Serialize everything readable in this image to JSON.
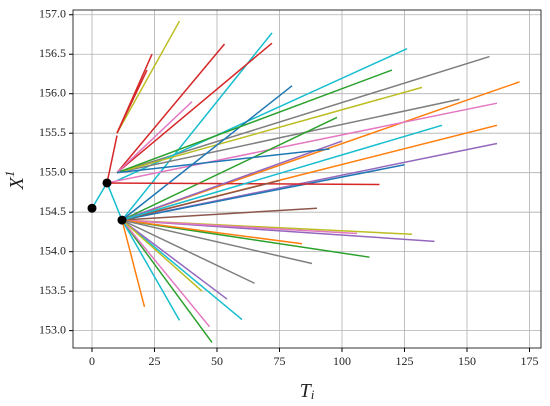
{
  "chart_data": {
    "type": "line",
    "xlabel": [
      "T",
      "i"
    ],
    "ylabel": [
      "X",
      "1"
    ],
    "xlim": [
      -7.6,
      179.6
    ],
    "ylim": [
      152.78,
      157.06
    ],
    "xticks": [
      0,
      25,
      50,
      75,
      100,
      125,
      150,
      175
    ],
    "yticks": [
      {
        "value": 153,
        "label": "153.0"
      },
      {
        "value": 153.5,
        "label": "153.5"
      },
      {
        "value": 154,
        "label": "154.0"
      },
      {
        "value": 154.5,
        "label": "154.5"
      },
      {
        "value": 155,
        "label": "155.0"
      },
      {
        "value": 155.5,
        "label": "155.5"
      },
      {
        "value": 156,
        "label": "156.0"
      },
      {
        "value": 156.5,
        "label": "156.5"
      },
      {
        "value": 157,
        "label": "157.0"
      }
    ],
    "grid": true,
    "series": [
      {
        "color": "#ff7f0e",
        "x": [
          12,
          171
        ],
        "values": [
          154.4,
          156.15
        ]
      },
      {
        "color": "#7f7f7f",
        "x": [
          10,
          159
        ],
        "values": [
          155.0,
          156.47
        ]
      },
      {
        "color": "#9467bd",
        "x": [
          12,
          162
        ],
        "values": [
          154.4,
          155.37
        ]
      },
      {
        "color": "#9467bd",
        "x": [
          12,
          137
        ],
        "values": [
          154.4,
          154.13
        ]
      },
      {
        "color": "#17becf",
        "x": [
          10,
          126
        ],
        "values": [
          154.9,
          156.57
        ]
      },
      {
        "color": "#2ca02c",
        "x": [
          12,
          111
        ],
        "values": [
          154.4,
          153.93
        ]
      },
      {
        "color": "#bcbd22",
        "x": [
          12,
          128
        ],
        "values": [
          154.4,
          154.22
        ]
      },
      {
        "color": "#bcbd22",
        "x": [
          10,
          35
        ],
        "values": [
          155.5,
          156.92
        ]
      },
      {
        "color": "#d62728",
        "x": [
          10,
          53
        ],
        "values": [
          155.0,
          156.63
        ]
      },
      {
        "color": "#17becf",
        "x": [
          12,
          72
        ],
        "values": [
          154.4,
          156.77
        ]
      },
      {
        "color": "#17becf",
        "x": [
          12,
          60
        ],
        "values": [
          154.4,
          153.14
        ]
      },
      {
        "color": "#2ca02c",
        "x": [
          12,
          48
        ],
        "values": [
          154.4,
          152.85
        ]
      },
      {
        "color": "#e377c2",
        "x": [
          12,
          47
        ],
        "values": [
          154.4,
          153.05
        ]
      },
      {
        "color": "#17becf",
        "x": [
          12,
          35
        ],
        "values": [
          154.4,
          153.13
        ]
      },
      {
        "color": "#ff7f0e",
        "x": [
          12,
          21
        ],
        "values": [
          154.4,
          153.3
        ]
      },
      {
        "color": "#e377c2",
        "x": [
          6,
          162
        ],
        "values": [
          154.87,
          155.88
        ]
      },
      {
        "color": "#7f7f7f",
        "x": [
          10,
          147
        ],
        "values": [
          155.0,
          155.93
        ]
      },
      {
        "color": "#ff7f0e",
        "x": [
          12,
          162
        ],
        "values": [
          154.4,
          155.6
        ]
      },
      {
        "color": "#e377c2",
        "x": [
          12,
          106
        ],
        "values": [
          154.4,
          154.23
        ]
      },
      {
        "color": "#1f77b4",
        "x": [
          12,
          125
        ],
        "values": [
          154.4,
          155.1
        ]
      },
      {
        "color": "#bcbd22",
        "x": [
          10,
          132
        ],
        "values": [
          155.0,
          156.08
        ]
      },
      {
        "color": "#8c564b",
        "x": [
          12,
          90
        ],
        "values": [
          154.4,
          154.55
        ]
      },
      {
        "color": "#d62728",
        "x": [
          10,
          72
        ],
        "values": [
          155.0,
          156.64
        ]
      },
      {
        "color": "#2ca02c",
        "x": [
          12,
          98
        ],
        "values": [
          154.4,
          155.7
        ]
      },
      {
        "color": "#d62728",
        "x": [
          10,
          24
        ],
        "values": [
          155.5,
          156.5
        ]
      },
      {
        "color": "#1f77b4",
        "x": [
          12,
          80
        ],
        "values": [
          154.4,
          156.1
        ]
      },
      {
        "color": "#d62728",
        "x": [
          6,
          115
        ],
        "values": [
          154.87,
          154.85
        ]
      },
      {
        "color": "#9467bd",
        "x": [
          12,
          54
        ],
        "values": [
          154.4,
          153.4
        ]
      },
      {
        "color": "#ff7f0e",
        "x": [
          12,
          84
        ],
        "values": [
          154.4,
          154.1
        ]
      },
      {
        "color": "#2ca02c",
        "x": [
          10,
          120
        ],
        "values": [
          155.0,
          156.3
        ]
      },
      {
        "color": "#7f7f7f",
        "x": [
          12,
          65
        ],
        "values": [
          154.4,
          153.6
        ]
      },
      {
        "color": "#e377c2",
        "x": [
          10,
          40
        ],
        "values": [
          155.0,
          155.9
        ]
      },
      {
        "color": "#9467bd",
        "x": [
          12,
          100
        ],
        "values": [
          154.4,
          155.4
        ]
      },
      {
        "color": "#8c564b",
        "x": [
          12,
          75
        ],
        "values": [
          154.4,
          154.9
        ]
      },
      {
        "color": "#d62728",
        "x": [
          10,
          22
        ],
        "values": [
          155.5,
          156.3
        ]
      },
      {
        "color": "#bcbd22",
        "x": [
          12,
          44
        ],
        "values": [
          154.4,
          153.5
        ]
      },
      {
        "color": "#d62728",
        "x": [
          6,
          10
        ],
        "values": [
          154.87,
          155.47
        ]
      },
      {
        "color": "#17becf",
        "x": [
          12,
          140
        ],
        "values": [
          154.4,
          155.6
        ]
      },
      {
        "color": "#7f7f7f",
        "x": [
          12,
          88
        ],
        "values": [
          154.4,
          153.85
        ]
      },
      {
        "color": "#1f77b4",
        "x": [
          10,
          95
        ],
        "values": [
          155.0,
          155.3
        ]
      }
    ],
    "path": {
      "color": "#17becf",
      "marker_color": "#000000",
      "x": [
        0,
        6,
        12
      ],
      "values": [
        154.55,
        154.87,
        154.4
      ]
    }
  }
}
